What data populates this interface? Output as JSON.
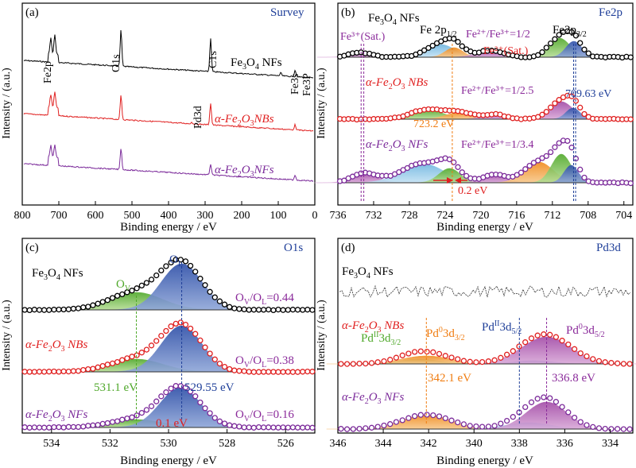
{
  "chart_data": [
    {
      "panel": "(a)",
      "title": "Survey",
      "type": "line",
      "xlabel": "Binding energy / eV",
      "ylabel": "Intensity / (a.u.)",
      "xlim": [
        800,
        0
      ],
      "xticks": [
        800,
        700,
        600,
        500,
        400,
        300,
        200,
        100,
        0
      ],
      "peak_labels": [
        {
          "text": "Fe2p",
          "x": 711
        },
        {
          "text": "O1s",
          "x": 530
        },
        {
          "text": "C1s",
          "x": 285
        },
        {
          "text": "Fe3s",
          "x": 54
        },
        {
          "text": "Fe3P",
          "x": 56
        },
        {
          "text": "Pd3d",
          "x": 337
        }
      ],
      "series": [
        {
          "name": "Fe3O4 NFs",
          "label": [
            "Fe",
            "3",
            "O",
            "4",
            " NFs"
          ],
          "color": "#000000",
          "peaks": [
            {
              "x": 722,
              "h": 0.45
            },
            {
              "x": 711,
              "h": 0.55
            },
            {
              "x": 530,
              "h": 1.0
            },
            {
              "x": 285,
              "h": 0.9
            },
            {
              "x": 93,
              "h": 0.08
            },
            {
              "x": 54,
              "h": 0.18
            }
          ]
        },
        {
          "name": "α-Fe2O3NBs",
          "label": [
            "α-Fe",
            "2",
            "O",
            "3",
            "NBs"
          ],
          "color": "#e02020",
          "peaks": [
            {
              "x": 722,
              "h": 0.45
            },
            {
              "x": 711,
              "h": 0.55
            },
            {
              "x": 530,
              "h": 0.85
            },
            {
              "x": 285,
              "h": 0.75
            },
            {
              "x": 337,
              "h": 0.05
            },
            {
              "x": 54,
              "h": 0.18
            }
          ]
        },
        {
          "name": "α-Fe2O3NFs",
          "label": [
            "α-Fe",
            "2",
            "O",
            "3",
            "NFs"
          ],
          "color": "#7b2a9a",
          "peaks": [
            {
              "x": 722,
              "h": 0.45
            },
            {
              "x": 711,
              "h": 0.5
            },
            {
              "x": 530,
              "h": 0.8
            },
            {
              "x": 285,
              "h": 0.4
            },
            {
              "x": 54,
              "h": 0.18
            }
          ]
        }
      ]
    },
    {
      "panel": "(b)",
      "title": "Fe2p",
      "type": "line",
      "xlabel": "Binding energy / eV",
      "ylabel": "Intensity / (a.u.)",
      "xlim": [
        736,
        703
      ],
      "xticks": [
        736,
        732,
        728,
        724,
        720,
        716,
        712,
        708,
        704
      ],
      "annotations": [
        "Fe³⁺(Sat.)",
        "Fe 2p₁/₂",
        "Fe²⁺/Fe³⁺=1/2",
        "Fe²⁺(Sat.)",
        "Fe2p₃/₂",
        "Fe²⁺/Fe³⁺=1/2.5",
        "709.63 eV",
        "723.2 eV",
        "Fe²⁺/Fe³⁺=1/3.4",
        "0.2 eV"
      ],
      "series": [
        {
          "name": "Fe3O4 NFs",
          "color": "#000000"
        },
        {
          "name": "α-Fe2O3 NBs",
          "color": "#e02020"
        },
        {
          "name": "α-Fe2O3 NFs",
          "color": "#7b2a9a"
        }
      ]
    },
    {
      "panel": "(c)",
      "title": "O1s",
      "type": "line",
      "xlabel": "Binding energy / eV",
      "ylabel": "Intensity / (a.u.)",
      "xlim": [
        535,
        525
      ],
      "xticks": [
        534,
        532,
        530,
        528,
        526
      ],
      "ratios": [
        "OV/OL=0.44",
        "OV/OL=0.38",
        "OV/OL=0.16"
      ],
      "values": {
        "OV_peak_eV": 531.1,
        "OL_peak_eV": 529.55,
        "shift_eV": 0.1
      },
      "series": [
        {
          "name": "Fe3O4 NFs",
          "color": "#000000",
          "ratio": 0.44
        },
        {
          "name": "α-Fe2O3 NBs",
          "color": "#e02020",
          "ratio": 0.38
        },
        {
          "name": "α-Fe2O3 NFs",
          "color": "#7b2a9a",
          "ratio": 0.16
        }
      ]
    },
    {
      "panel": "(d)",
      "title": "Pd3d",
      "type": "line",
      "xlabel": "Binding energy / eV",
      "ylabel": "Intensity / (a.u.)",
      "xlim": [
        346,
        333
      ],
      "xticks": [
        346,
        344,
        342,
        340,
        338,
        336,
        334
      ],
      "values": {
        "Pd0_3d32_eV": 342.1,
        "Pd0_3d52_eV": 336.8
      },
      "series": [
        {
          "name": "Fe3O4 NFs",
          "color": "#000000"
        },
        {
          "name": "α-Fe2O3 NBs",
          "color": "#e02020"
        },
        {
          "name": "α-Fe2O3 NFs",
          "color": "#7b2a9a"
        }
      ]
    }
  ],
  "panel_a": {
    "label": "(a)",
    "title": "Survey",
    "xlabel": "Binding energy / eV",
    "ylabel": "Intensity / (a.u.)",
    "peaks": {
      "fe2p": "Fe2p",
      "o1s": "O1s",
      "c1s": "C1s",
      "fe3s": "Fe3s",
      "fe3p": "Fe3P",
      "pd3d": "Pd3d"
    },
    "ticks": [
      "800",
      "700",
      "600",
      "500",
      "400",
      "300",
      "200",
      "100",
      "0"
    ]
  },
  "panel_b": {
    "label": "(b)",
    "title": "Fe2p",
    "xlabel": "Binding energy / eV",
    "ylabel": "Intensity / (a.u.)",
    "ticks": [
      "736",
      "732",
      "728",
      "724",
      "720",
      "716",
      "712",
      "708",
      "704"
    ],
    "sat3": "Fe³⁺(Sat.)",
    "ratio1": "Fe²⁺/Fe³⁺=1/2",
    "sat2": "Fe²⁺(Sat.)",
    "ratio2": "Fe²⁺/Fe³⁺=1/2.5",
    "ratio3": "Fe²⁺/Fe³⁺=1/3.4",
    "val_709": "709.63 eV",
    "val_723": "723.2 eV",
    "shift": "0.2 eV"
  },
  "panel_c": {
    "label": "(c)",
    "title": "O1s",
    "xlabel": "Binding energy / eV",
    "ylabel": "Intensity / (a.u.)",
    "ticks": [
      "534",
      "532",
      "530",
      "528",
      "526"
    ],
    "r1": "0.44",
    "r2": "0.38",
    "r3": "0.16",
    "v1": "531.1 eV",
    "v2": "529.55 eV",
    "shift": "0.1 eV"
  },
  "panel_d": {
    "label": "(d)",
    "title": "Pd3d",
    "xlabel": "Binding energy / eV",
    "ylabel": "Intensity / (a.u.)",
    "ticks": [
      "346",
      "344",
      "342",
      "340",
      "338",
      "336",
      "334"
    ],
    "v1": "342.1 eV",
    "v2": "336.8 eV"
  }
}
